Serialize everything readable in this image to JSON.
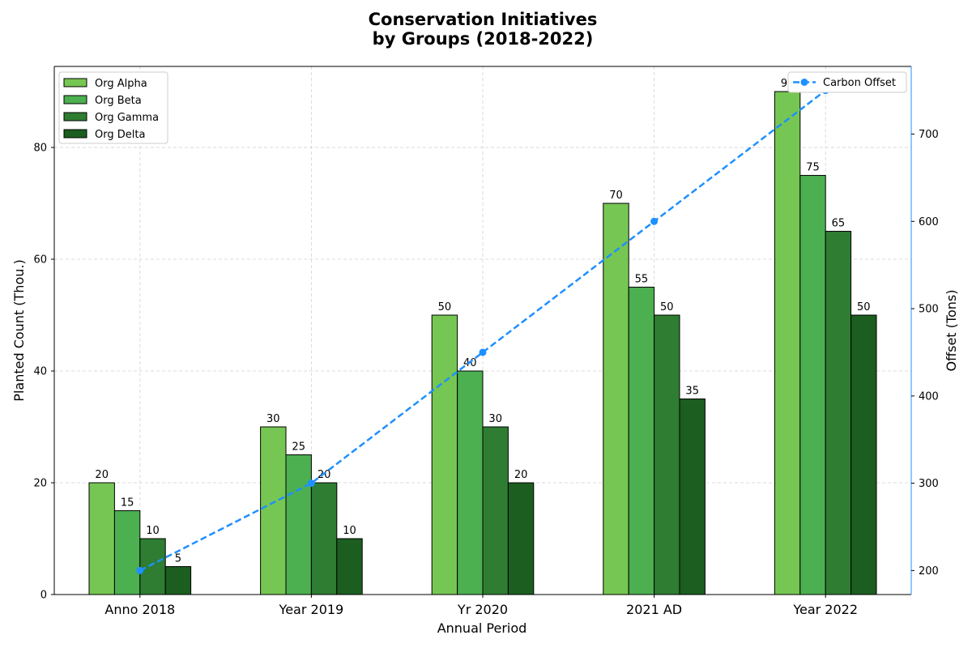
{
  "chart_data": {
    "type": "bar",
    "title_lines": [
      "Conservation Initiatives",
      "by Groups (2018-2022)"
    ],
    "xlabel": "Annual Period",
    "ylabel": "Planted Count (Thou.)",
    "y2label": "Offset (Tons)",
    "categories": [
      "Anno 2018",
      "Year 2019",
      "Yr 2020",
      "2021 AD",
      "Year 2022"
    ],
    "ylim": [
      0,
      94.5
    ],
    "yticks": [
      0,
      20,
      40,
      60,
      80
    ],
    "y2lim": [
      172.5,
      777.5
    ],
    "y2ticks": [
      200,
      300,
      400,
      500,
      600,
      700
    ],
    "grid": true,
    "series": [
      {
        "name": "Org Alpha",
        "values": [
          20,
          30,
          50,
          70,
          90
        ],
        "color": "#76c653"
      },
      {
        "name": "Org Beta",
        "values": [
          15,
          25,
          40,
          55,
          75
        ],
        "color": "#4caf50"
      },
      {
        "name": "Org Gamma",
        "values": [
          10,
          20,
          30,
          50,
          65
        ],
        "color": "#2e7d32"
      },
      {
        "name": "Org Delta",
        "values": [
          5,
          10,
          20,
          35,
          50
        ],
        "color": "#1b5e20"
      }
    ],
    "line_series": {
      "name": "Carbon Offset",
      "axis": "right",
      "values": [
        200,
        300,
        450,
        600,
        750
      ],
      "color": "#1e90ff",
      "style": "dashed"
    },
    "legend_left_position": "top-left",
    "legend_right_position": "top-right"
  }
}
